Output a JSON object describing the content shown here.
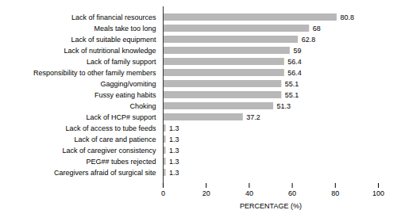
{
  "chart_data": {
    "type": "bar",
    "orientation": "horizontal",
    "categories": [
      "Caregivers afraid of surgical site",
      "PEG## tubes rejected",
      "Lack of caregiver consistency",
      "Lack of care and patience",
      "Lack of access to tube feeds",
      "Lack of HCP# support",
      "Choking",
      "Fussy eating habits",
      "Gagging/vomiting",
      "Responsibility to other family members",
      "Lack of family support",
      "Lack of nutritional knowledge",
      "Lack of suitable equipment",
      "Meals take too long",
      "Lack of financial resources"
    ],
    "values": [
      1.3,
      1.3,
      1.3,
      1.3,
      1.3,
      37.2,
      51.3,
      55.1,
      55.1,
      56.4,
      56.4,
      59,
      62.8,
      68,
      80.8
    ],
    "color": "#b8b8b8",
    "xlabel": "PERCENTAGE (%)",
    "xlim": [
      0,
      100
    ],
    "xticks": [
      0,
      20,
      40,
      60,
      80,
      100
    ],
    "data_labels": true,
    "grid": false
  }
}
